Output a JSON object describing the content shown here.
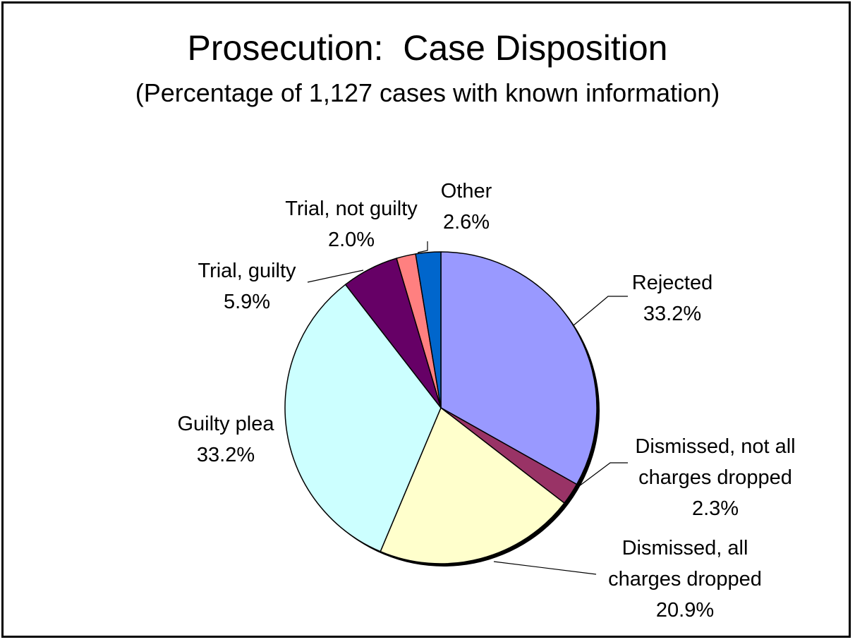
{
  "chart_data": {
    "type": "pie",
    "title": "Prosecution:  Case Disposition",
    "subtitle": "(Percentage of 1,127 cases with known information)",
    "slices": [
      {
        "name": "Rejected",
        "label_lines": [
          "Rejected",
          "33.2%"
        ],
        "value": 33.2,
        "color": "#9999FF"
      },
      {
        "name": "Dismissed, not all charges dropped",
        "label_lines": [
          "Dismissed, not all",
          "charges dropped",
          "2.3%"
        ],
        "value": 2.3,
        "color": "#993366"
      },
      {
        "name": "Dismissed, all charges dropped",
        "label_lines": [
          "Dismissed, all",
          "charges dropped",
          "20.9%"
        ],
        "value": 20.9,
        "color": "#FFFFCC"
      },
      {
        "name": "Guilty plea",
        "label_lines": [
          "Guilty plea",
          "33.2%"
        ],
        "value": 33.2,
        "color": "#CCFFFF"
      },
      {
        "name": "Trial, guilty",
        "label_lines": [
          "Trial, guilty",
          "5.9%"
        ],
        "value": 5.9,
        "color": "#660066"
      },
      {
        "name": "Trial, not guilty",
        "label_lines": [
          "Trial, not guilty",
          "2.0%"
        ],
        "value": 2.0,
        "color": "#FF8080"
      },
      {
        "name": "Other",
        "label_lines": [
          "Other",
          "2.6%"
        ],
        "value": 2.6,
        "color": "#0066CC"
      }
    ]
  }
}
